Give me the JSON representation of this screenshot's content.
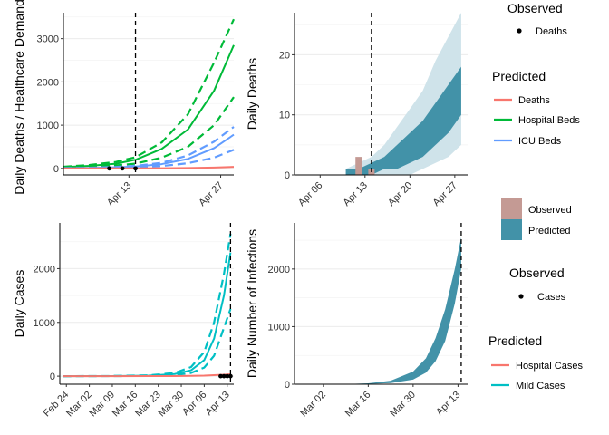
{
  "chart_data": [
    {
      "id": "p1",
      "type": "line",
      "ylabel": "Daily Deaths / Healthcare Demands",
      "xlabel": "",
      "x_ticks": [
        "Apr 13",
        "Apr 27"
      ],
      "x_range": [
        "2020-04-03",
        "2020-04-29"
      ],
      "ylim": [
        -150,
        3600
      ],
      "y_ticks": [
        0,
        1000,
        2000,
        3000
      ],
      "vline_x": "2020-04-14",
      "x": [
        "2020-04-03",
        "2020-04-07",
        "2020-04-11",
        "2020-04-14",
        "2020-04-18",
        "2020-04-22",
        "2020-04-26",
        "2020-04-29"
      ],
      "series": [
        {
          "name": "Hospital Beds",
          "role": "median",
          "color": "#00ba38",
          "dash": false,
          "values": [
            30,
            60,
            110,
            200,
            450,
            900,
            1800,
            2850
          ]
        },
        {
          "name": "Hospital Beds",
          "role": "upper",
          "color": "#00ba38",
          "dash": true,
          "values": [
            40,
            80,
            150,
            260,
            600,
            1250,
            2450,
            3450
          ]
        },
        {
          "name": "Hospital Beds",
          "role": "lower",
          "color": "#00ba38",
          "dash": true,
          "values": [
            20,
            40,
            70,
            110,
            250,
            500,
            1000,
            1650
          ]
        },
        {
          "name": "ICU Beds",
          "role": "median",
          "color": "#619cff",
          "dash": false,
          "values": [
            5,
            10,
            25,
            45,
            100,
            220,
            470,
            780
          ]
        },
        {
          "name": "ICU Beds",
          "role": "upper",
          "color": "#619cff",
          "dash": true,
          "values": [
            8,
            15,
            35,
            60,
            130,
            300,
            620,
            960
          ]
        },
        {
          "name": "ICU Beds",
          "role": "lower",
          "color": "#619cff",
          "dash": true,
          "values": [
            3,
            6,
            15,
            25,
            55,
            120,
            250,
            430
          ]
        },
        {
          "name": "Deaths",
          "role": "median",
          "color": "#f8766d",
          "dash": false,
          "values": [
            0,
            1,
            2,
            3,
            5,
            10,
            20,
            35
          ]
        }
      ],
      "observed_points": {
        "name": "Deaths",
        "x": [
          "2020-04-10",
          "2020-04-12",
          "2020-04-14"
        ],
        "values": [
          0,
          0,
          0
        ]
      }
    },
    {
      "id": "p2",
      "type": "bar",
      "ylabel": "Daily Deaths",
      "xlabel": "",
      "x_ticks": [
        "Apr 06",
        "Apr 13",
        "Apr 20",
        "Apr 27"
      ],
      "x_range": [
        "2020-04-02",
        "2020-04-29"
      ],
      "ylim": [
        0,
        27
      ],
      "y_ticks": [
        0,
        10,
        20
      ],
      "vline_x": "2020-04-14",
      "observed": {
        "x": [
          "2020-04-12",
          "2020-04-14"
        ],
        "values": [
          3,
          1
        ],
        "color": "#c49a94"
      },
      "predicted": {
        "color": "#4292a8",
        "light_color": "#cfe3ea",
        "x": [
          "2020-04-10",
          "2020-04-12",
          "2020-04-14",
          "2020-04-16",
          "2020-04-18",
          "2020-04-20",
          "2020-04-22",
          "2020-04-24",
          "2020-04-26",
          "2020-04-28"
        ],
        "lower": [
          0,
          0,
          0,
          1,
          1,
          2,
          3,
          5,
          7,
          10
        ],
        "upper": [
          1,
          1,
          2,
          3,
          5,
          7,
          9,
          12,
          15,
          18
        ],
        "min": [
          0,
          0,
          0,
          0,
          0,
          0,
          1,
          2,
          3,
          5
        ],
        "max": [
          1,
          2,
          3,
          5,
          8,
          11,
          14,
          19,
          23,
          27
        ]
      }
    },
    {
      "id": "p3",
      "type": "line",
      "ylabel": "Daily Cases",
      "xlabel": "",
      "x_ticks": [
        "Feb 24",
        "Mar 02",
        "Mar 09",
        "Mar 16",
        "Mar 23",
        "Mar 30",
        "Apr 06",
        "Apr 13"
      ],
      "x_range": [
        "2020-02-22",
        "2020-04-15"
      ],
      "ylim": [
        -150,
        2850
      ],
      "y_ticks": [
        0,
        1000,
        2000
      ],
      "vline_x": "2020-04-14",
      "x": [
        "2020-02-23",
        "2020-03-09",
        "2020-03-20",
        "2020-03-28",
        "2020-04-02",
        "2020-04-06",
        "2020-04-09",
        "2020-04-12",
        "2020-04-14"
      ],
      "series": [
        {
          "name": "Mild Cases",
          "role": "median",
          "color": "#00bfc4",
          "dash": false,
          "values": [
            0,
            2,
            10,
            40,
            110,
            300,
            700,
            1500,
            2300
          ]
        },
        {
          "name": "Mild Cases",
          "role": "upper",
          "color": "#00bfc4",
          "dash": true,
          "values": [
            0,
            3,
            15,
            60,
            170,
            450,
            1000,
            1900,
            2650
          ]
        },
        {
          "name": "Mild Cases",
          "role": "lower",
          "color": "#00bfc4",
          "dash": true,
          "values": [
            0,
            1,
            5,
            20,
            60,
            160,
            380,
            900,
            1250
          ]
        },
        {
          "name": "Hospital Cases",
          "role": "median",
          "color": "#f8766d",
          "dash": false,
          "values": [
            0,
            0,
            1,
            2,
            5,
            10,
            18,
            28,
            35
          ]
        }
      ],
      "observed_points": {
        "name": "Cases",
        "x": [
          "2020-04-11",
          "2020-04-12",
          "2020-04-13",
          "2020-04-14"
        ],
        "values": [
          0,
          0,
          0,
          0
        ]
      }
    },
    {
      "id": "p4",
      "type": "bar",
      "ylabel": "Daily Number of Infections",
      "xlabel": "",
      "x_ticks": [
        "Mar 02",
        "Mar 16",
        "Mar 30",
        "Apr 13"
      ],
      "x_range": [
        "2020-02-22",
        "2020-04-16"
      ],
      "ylim": [
        0,
        2800
      ],
      "y_ticks": [
        0,
        1000,
        2000
      ],
      "vline_x": "2020-04-14",
      "predicted": {
        "color": "#4292a8",
        "x": [
          "2020-03-09",
          "2020-03-16",
          "2020-03-23",
          "2020-03-30",
          "2020-04-03",
          "2020-04-06",
          "2020-04-09",
          "2020-04-12",
          "2020-04-14"
        ],
        "lower": [
          0,
          5,
          20,
          80,
          200,
          400,
          750,
          1400,
          2000
        ],
        "upper": [
          1,
          15,
          60,
          220,
          450,
          800,
          1300,
          2000,
          2550
        ]
      }
    }
  ],
  "legend1": {
    "observed_title": "Observed",
    "observed_items": [
      {
        "label": "Deaths",
        "color": "#000000"
      }
    ],
    "predicted_title": "Predicted",
    "predicted_items": [
      {
        "label": "Deaths",
        "color": "#f8766d"
      },
      {
        "label": "Hospital Beds",
        "color": "#00ba38"
      },
      {
        "label": "ICU Beds",
        "color": "#619cff"
      }
    ]
  },
  "legend2": {
    "items": [
      {
        "label": "Observed",
        "color": "#c49a94"
      },
      {
        "label": "Predicted",
        "color": "#4292a8"
      }
    ]
  },
  "legend3": {
    "observed_title": "Observed",
    "observed_items": [
      {
        "label": "Cases",
        "color": "#000000"
      }
    ],
    "predicted_title": "Predicted",
    "predicted_items": [
      {
        "label": "Hospital Cases",
        "color": "#f8766d"
      },
      {
        "label": "Mild Cases",
        "color": "#00bfc4"
      }
    ]
  }
}
